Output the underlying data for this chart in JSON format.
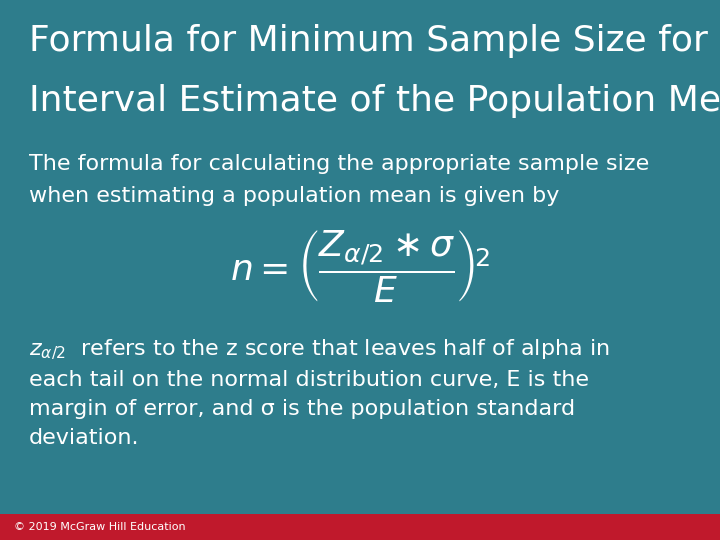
{
  "title_line1": "Formula for Minimum Sample Size for an",
  "title_line2": "Interval Estimate of the Population Mean",
  "bg_color": "#2E7D8C",
  "text_color": "#FFFFFF",
  "footer_color": "#C0192C",
  "footer_text": "© 2019 McGraw Hill Education",
  "body_text1": "The formula for calculating the appropriate sample size",
  "body_text2": "when estimating a population mean is given by",
  "explain_suffix": "  refers to the z score that leaves half of alpha in each tail on the normal distribution curve, E is the margin of error, and σ is the population standard deviation.",
  "title_fontsize": 26,
  "body_fontsize": 16,
  "formula_fontsize": 26,
  "footer_fontsize": 8,
  "footer_bar_height": 0.048
}
